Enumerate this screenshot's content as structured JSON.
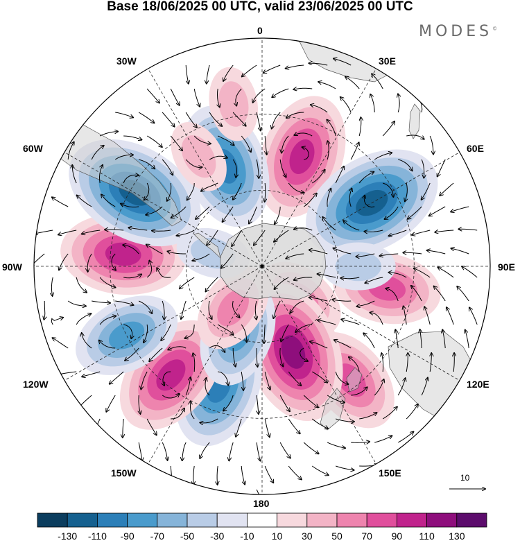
{
  "title": "Base 18/06/2025 00 UTC, valid 23/06/2025 00 UTC",
  "brand": "MODES",
  "brand_mark": "©",
  "longitude_labels": [
    "0",
    "30E",
    "60E",
    "90E",
    "120E",
    "150E",
    "180",
    "150W",
    "120W",
    "90W",
    "60W",
    "30W"
  ],
  "colorbar": {
    "ticks": [
      "-130",
      "-110",
      "-90",
      "-70",
      "-50",
      "-30",
      "-10",
      "10",
      "30",
      "50",
      "70",
      "90",
      "110",
      "130"
    ],
    "colors": [
      "#0b3d5e",
      "#15608f",
      "#2c7fb8",
      "#4a9bcc",
      "#86b4d9",
      "#b9cce6",
      "#e1e3f1",
      "#ffffff",
      "#f7d9de",
      "#f3b4c6",
      "#ee84ae",
      "#e04f9c",
      "#c0238c",
      "#8e0e7c",
      "#5c0c6c"
    ]
  },
  "reference_vector": {
    "value": "10"
  },
  "anomaly_field": [
    {
      "lon": 20,
      "colat": 46,
      "value": 105
    },
    {
      "lon": -20,
      "colat": 42,
      "value": -95
    },
    {
      "lon": 60,
      "colat": 50,
      "value": -110
    },
    {
      "lon": 100,
      "colat": 50,
      "value": 80
    },
    {
      "lon": 130,
      "colat": 20,
      "value": 50
    },
    {
      "lon": 90,
      "colat": 38,
      "value": -40
    },
    {
      "lon": 142,
      "colat": 57,
      "value": 75
    },
    {
      "lon": 160,
      "colat": 36,
      "value": 110
    },
    {
      "lon": -160,
      "colat": 50,
      "value": -105
    },
    {
      "lon": -140,
      "colat": 56,
      "value": 100
    },
    {
      "lon": -160,
      "colat": 28,
      "value": -85
    },
    {
      "lon": -145,
      "colat": 20,
      "value": 55
    },
    {
      "lon": -117,
      "colat": 60,
      "value": -80
    },
    {
      "lon": -85,
      "colat": 55,
      "value": 95
    },
    {
      "lon": -60,
      "colat": 58,
      "value": -115
    },
    {
      "lon": -30,
      "colat": 50,
      "value": 35
    },
    {
      "lon": -75,
      "colat": 20,
      "value": -30
    },
    {
      "lon": -10,
      "colat": 65,
      "value": 30
    }
  ]
}
